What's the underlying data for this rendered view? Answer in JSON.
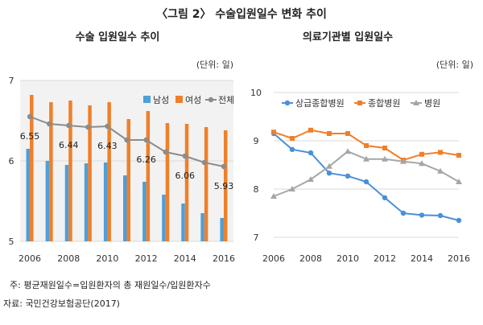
{
  "figure_title": "〈그림 2〉 수술입원일수 변화 추이",
  "note": "주: 평균재원일수=입원환자의 총 재원일수/입원환자수",
  "source": "자료: 국민건강보험공단(2017)",
  "colors": {
    "male": "#4F9FD8",
    "female": "#F07F2A",
    "total": "#8C8C8C",
    "sangup": "#4A90D9",
    "general": "#F07F2A",
    "hospital": "#A6A6A6",
    "grid": "#D9D9D9",
    "panel_bg": "#F2F2F2"
  },
  "chart_data": [
    {
      "type": "bar",
      "title": "수술 입원일수 추이",
      "unit": "(단위: 일)",
      "categories": [
        "2006",
        "2007",
        "2008",
        "2009",
        "2010",
        "2011",
        "2012",
        "2013",
        "2014",
        "2015",
        "2016"
      ],
      "x_tick_labels": [
        "2006",
        "2008",
        "2010",
        "2012",
        "2014",
        "2016"
      ],
      "y_ticks": [
        "5",
        "6",
        "7"
      ],
      "ylim": [
        5,
        7
      ],
      "legend": [
        "남성",
        "여성",
        "전체"
      ],
      "series": [
        {
          "name": "남성",
          "kind": "bar",
          "values": [
            6.15,
            6.0,
            5.95,
            5.97,
            5.98,
            5.82,
            5.74,
            5.58,
            5.47,
            5.35,
            5.29
          ]
        },
        {
          "name": "여성",
          "kind": "bar",
          "values": [
            6.82,
            6.73,
            6.75,
            6.69,
            6.73,
            6.52,
            6.62,
            6.47,
            6.46,
            6.42,
            6.38
          ]
        },
        {
          "name": "전체",
          "kind": "line",
          "values": [
            6.55,
            6.46,
            6.44,
            6.42,
            6.43,
            6.26,
            6.26,
            6.11,
            6.06,
            5.98,
            5.93
          ]
        }
      ],
      "data_labels": [
        {
          "index": 0,
          "text": "6.55"
        },
        {
          "index": 2,
          "text": "6.44"
        },
        {
          "index": 4,
          "text": "6.43"
        },
        {
          "index": 6,
          "text": "6.26"
        },
        {
          "index": 8,
          "text": "6.06"
        },
        {
          "index": 10,
          "text": "5.93"
        }
      ]
    },
    {
      "type": "line",
      "title": "의료기관별 입원일수",
      "unit": "(단위: 일)",
      "categories": [
        "2006",
        "2007",
        "2008",
        "2009",
        "2010",
        "2011",
        "2012",
        "2013",
        "2014",
        "2015",
        "2016"
      ],
      "x_tick_labels": [
        "2006",
        "2008",
        "2010",
        "2012",
        "2014",
        "2016"
      ],
      "y_ticks": [
        "7",
        "8",
        "9",
        "10"
      ],
      "ylim": [
        7,
        10
      ],
      "legend": [
        "상급종합병원",
        "종합병원",
        "병원"
      ],
      "series": [
        {
          "name": "상급종합병원",
          "values": [
            9.15,
            8.82,
            8.75,
            8.33,
            8.27,
            8.15,
            7.82,
            7.5,
            7.46,
            7.45,
            7.35
          ]
        },
        {
          "name": "종합병원",
          "values": [
            9.18,
            9.05,
            9.22,
            9.15,
            9.15,
            8.9,
            8.85,
            8.6,
            8.72,
            8.76,
            8.7
          ]
        },
        {
          "name": "병원",
          "values": [
            7.85,
            8.0,
            8.2,
            8.47,
            8.78,
            8.62,
            8.62,
            8.57,
            8.53,
            8.37,
            8.15
          ]
        }
      ]
    }
  ]
}
